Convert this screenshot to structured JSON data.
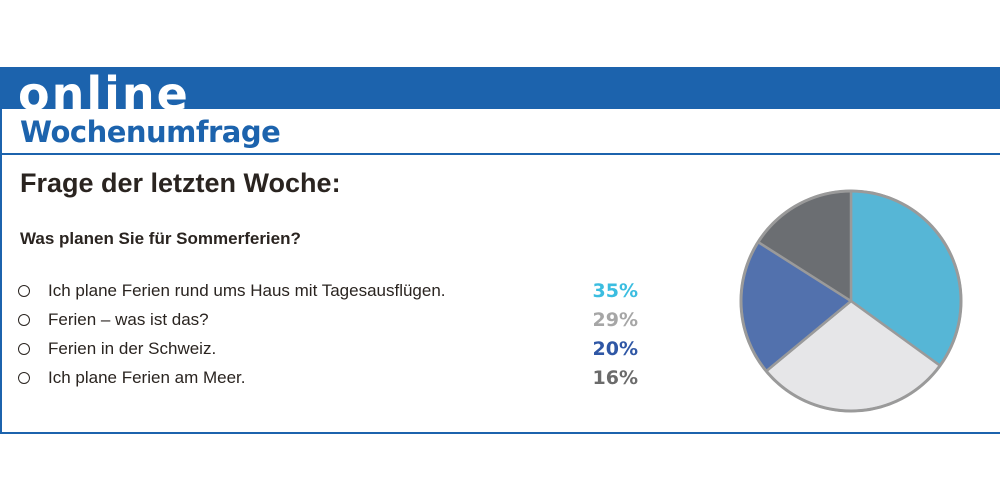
{
  "header": {
    "banner_text": "online",
    "section_title": "Wochenumfrage",
    "heading": "Frage der letzten Woche:",
    "question": "Was planen Sie für Sommerferien?"
  },
  "colors": {
    "brand_blue": "#1c63ad",
    "slice_light_blue": "#56b6d6",
    "slice_light_gray": "#e6e6e8",
    "slice_blue": "#5271ad",
    "slice_dark_gray": "#6b6e72",
    "pct_light_blue": "#3bbde0",
    "pct_gray": "#a6a6a6",
    "pct_blue": "#2f57a5",
    "pct_dark_gray": "#6b6b6b"
  },
  "options": [
    {
      "label": "Ich plane Ferien rund ums Haus mit Tagesausflügen.",
      "percent": "35%"
    },
    {
      "label": "Ferien – was ist das?",
      "percent": "29%"
    },
    {
      "label": "Ferien in der Schweiz.",
      "percent": "20%"
    },
    {
      "label": "Ich plane Ferien am Meer.",
      "percent": "16%"
    }
  ],
  "chart_data": {
    "type": "pie",
    "categories": [
      "Ich plane Ferien rund ums Haus mit Tagesausflügen.",
      "Ferien – was ist das?",
      "Ferien in der Schweiz.",
      "Ich plane Ferien am Meer."
    ],
    "values": [
      35,
      29,
      20,
      16
    ],
    "colors": [
      "#56b6d6",
      "#e6e6e8",
      "#5271ad",
      "#6b6e72"
    ],
    "start": "12 o'clock",
    "direction": "clockwise"
  }
}
